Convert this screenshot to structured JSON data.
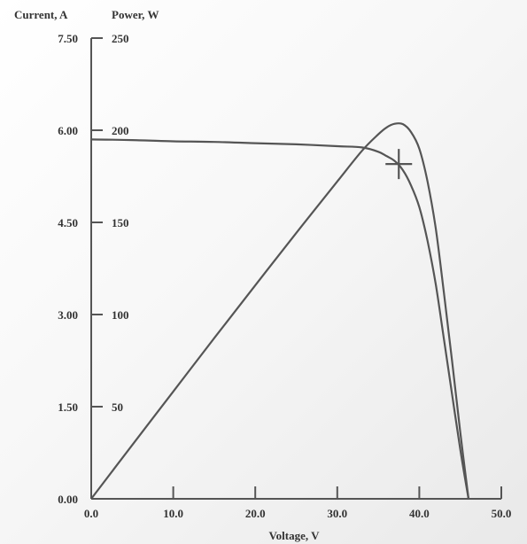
{
  "chart_data": {
    "type": "line",
    "xlabel": "Voltage, V",
    "ylabel_left": "Current, A",
    "ylabel_right": "Power, W",
    "xlim": [
      0,
      50
    ],
    "ylim_current": [
      0,
      7.5
    ],
    "ylim_power": [
      0,
      250
    ],
    "x_ticks": [
      "0.0",
      "10.0",
      "20.0",
      "30.0",
      "40.0",
      "50.0"
    ],
    "current_ticks": [
      "0.00",
      "1.50",
      "3.00",
      "4.50",
      "6.00",
      "7.50"
    ],
    "power_ticks": [
      "50",
      "100",
      "150",
      "200",
      "250"
    ],
    "series": [
      {
        "axis": "current",
        "x": [
          0,
          5,
          10,
          15,
          20,
          25,
          30,
          33,
          35,
          36,
          37,
          38,
          39,
          40,
          41,
          42,
          43,
          44,
          45,
          46
        ],
        "y": [
          5.85,
          5.84,
          5.82,
          5.81,
          5.79,
          5.77,
          5.74,
          5.72,
          5.65,
          5.58,
          5.5,
          5.35,
          5.1,
          4.75,
          4.2,
          3.5,
          2.6,
          1.7,
          0.8,
          0
        ]
      },
      {
        "axis": "power",
        "x": [
          0,
          5,
          10,
          15,
          20,
          25,
          30,
          33,
          35,
          36,
          37,
          38,
          39,
          40,
          41,
          42,
          43,
          44,
          45,
          46
        ],
        "y": [
          0,
          29.2,
          58.2,
          87.2,
          115.8,
          144.3,
          172.2,
          188.8,
          197.8,
          201.5,
          203.5,
          203.3,
          199,
          190,
          172.2,
          147,
          111.8,
          74.8,
          36,
          0
        ]
      }
    ],
    "marker": {
      "label": "",
      "x": 37.5,
      "y_current": 5.45
    }
  }
}
